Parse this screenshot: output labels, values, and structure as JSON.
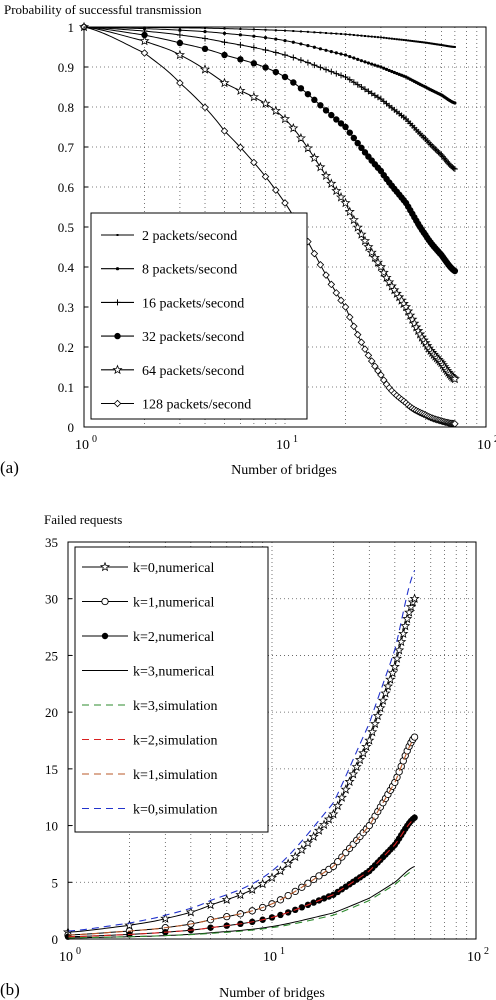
{
  "chart_data": [
    {
      "type": "line",
      "panel_label": "(a)",
      "title": "Probability of successful transmission",
      "xlabel": "Number of bridges",
      "ylabel": "",
      "xscale": "log",
      "xlim": [
        1,
        100
      ],
      "ylim": [
        0,
        1
      ],
      "x_ticks": [
        1,
        10,
        100
      ],
      "x_tick_labels": [
        "10",
        "10",
        "10"
      ],
      "x_tick_exponents": [
        "0",
        "1",
        "2"
      ],
      "y_ticks": [
        0,
        0.1,
        0.2,
        0.3,
        0.4,
        0.5,
        0.6,
        0.7,
        0.8,
        0.9,
        1
      ],
      "y_tick_labels": [
        "0",
        "0.1",
        "0.2",
        "0.3",
        "0.4",
        "0.5",
        "0.6",
        "0.7",
        "0.8",
        "0.9",
        "1"
      ],
      "grid": true,
      "legend_position": "lower-left",
      "x_range": [
        1,
        70
      ],
      "series": [
        {
          "name": "2 packets/second",
          "marker": "dot-small",
          "x": [
            1,
            2,
            3,
            5,
            10,
            20,
            30,
            40,
            50,
            60,
            70
          ],
          "values": [
            1.0,
            0.999,
            0.998,
            0.996,
            0.991,
            0.982,
            0.974,
            0.967,
            0.961,
            0.955,
            0.95
          ]
        },
        {
          "name": "8 packets/second",
          "marker": "dot",
          "x": [
            1,
            2,
            3,
            5,
            10,
            20,
            30,
            40,
            50,
            60,
            70
          ],
          "values": [
            1.0,
            0.996,
            0.992,
            0.984,
            0.966,
            0.93,
            0.9,
            0.875,
            0.85,
            0.83,
            0.81
          ]
        },
        {
          "name": "16 packets/second",
          "marker": "plus",
          "x": [
            1,
            2,
            3,
            5,
            10,
            20,
            30,
            40,
            50,
            60,
            70
          ],
          "values": [
            1.0,
            0.99,
            0.98,
            0.962,
            0.93,
            0.875,
            0.82,
            0.77,
            0.72,
            0.68,
            0.645
          ]
        },
        {
          "name": "32 packets/second",
          "marker": "filled-circle",
          "x": [
            1,
            2,
            3,
            5,
            10,
            20,
            30,
            40,
            50,
            60,
            70
          ],
          "values": [
            1.0,
            0.98,
            0.96,
            0.93,
            0.875,
            0.75,
            0.64,
            0.56,
            0.48,
            0.43,
            0.39
          ]
        },
        {
          "name": "64 packets/second",
          "marker": "star",
          "x": [
            1,
            2,
            3,
            5,
            10,
            20,
            30,
            40,
            50,
            60,
            70
          ],
          "values": [
            1.0,
            0.965,
            0.93,
            0.86,
            0.77,
            0.56,
            0.4,
            0.3,
            0.21,
            0.16,
            0.12
          ]
        },
        {
          "name": "128 packets/second",
          "marker": "diamond",
          "x": [
            1,
            2,
            3,
            5,
            10,
            20,
            30,
            40,
            50,
            60,
            70
          ],
          "values": [
            1.0,
            0.935,
            0.86,
            0.74,
            0.56,
            0.3,
            0.13,
            0.06,
            0.03,
            0.015,
            0.008
          ]
        }
      ]
    },
    {
      "type": "line",
      "panel_label": "(b)",
      "title": "Failed requests",
      "xlabel": "Number of bridges",
      "ylabel": "",
      "xscale": "log",
      "xlim": [
        1,
        100
      ],
      "ylim": [
        0,
        35
      ],
      "x_ticks": [
        1,
        10,
        100
      ],
      "x_tick_labels": [
        "10",
        "10",
        "10"
      ],
      "x_tick_exponents": [
        "0",
        "1",
        "2"
      ],
      "y_ticks": [
        0,
        5,
        10,
        15,
        20,
        25,
        30,
        35
      ],
      "y_tick_labels": [
        "0",
        "5",
        "10",
        "15",
        "20",
        "25",
        "30",
        "35"
      ],
      "grid": true,
      "legend_position": "top-left",
      "x_range": [
        1,
        50
      ],
      "series": [
        {
          "name": "k=0,numerical",
          "style": "solid",
          "color": "#000000",
          "marker": "star",
          "x": [
            1,
            2,
            3,
            5,
            10,
            20,
            30,
            40,
            50
          ],
          "values": [
            0.6,
            1.2,
            1.8,
            3.0,
            5.4,
            11.0,
            17.5,
            24.0,
            30.0
          ]
        },
        {
          "name": "k=1,numerical",
          "style": "solid",
          "color": "#000000",
          "marker": "open-circle",
          "x": [
            1,
            2,
            3,
            5,
            10,
            20,
            30,
            40,
            50
          ],
          "values": [
            0.35,
            0.7,
            1.0,
            1.7,
            3.1,
            6.4,
            10.0,
            13.8,
            17.8
          ]
        },
        {
          "name": "k=2,numerical",
          "style": "solid",
          "color": "#000000",
          "marker": "filled-circle",
          "x": [
            1,
            2,
            3,
            5,
            10,
            20,
            30,
            40,
            50
          ],
          "values": [
            0.2,
            0.4,
            0.6,
            1.0,
            1.9,
            3.9,
            6.0,
            8.3,
            10.7
          ]
        },
        {
          "name": "k=3,numerical",
          "style": "solid",
          "color": "#000000",
          "marker": "none",
          "x": [
            1,
            2,
            3,
            5,
            10,
            20,
            30,
            40,
            50
          ],
          "values": [
            0.1,
            0.2,
            0.3,
            0.55,
            1.1,
            2.3,
            3.6,
            5.0,
            6.4
          ]
        },
        {
          "name": "k=3,simulation",
          "style": "dashed",
          "color": "#2e8b2e",
          "marker": "none",
          "x": [
            1,
            2,
            3,
            5,
            10,
            20,
            30,
            40,
            50
          ],
          "values": [
            0.1,
            0.2,
            0.3,
            0.5,
            1.0,
            2.1,
            3.4,
            4.8,
            6.1
          ]
        },
        {
          "name": "k=2,simulation",
          "style": "dashed",
          "color": "#d82020",
          "marker": "none",
          "x": [
            1,
            2,
            3,
            5,
            10,
            20,
            30,
            40,
            50
          ],
          "values": [
            0.2,
            0.4,
            0.6,
            1.0,
            1.9,
            3.9,
            6.0,
            8.3,
            10.6
          ]
        },
        {
          "name": "k=1,simulation",
          "style": "dashed",
          "color": "#b85a2a",
          "marker": "none",
          "x": [
            1,
            2,
            3,
            5,
            10,
            20,
            30,
            40,
            50
          ],
          "values": [
            0.35,
            0.7,
            1.0,
            1.7,
            3.1,
            6.4,
            10.0,
            13.8,
            17.7
          ]
        },
        {
          "name": "k=0,simulation",
          "style": "dashed",
          "color": "#2233cc",
          "marker": "none",
          "x": [
            1,
            2,
            3,
            5,
            10,
            20,
            30,
            40,
            50
          ],
          "values": [
            0.7,
            1.4,
            2.1,
            3.4,
            6.0,
            12.0,
            19.0,
            25.5,
            32.5
          ]
        }
      ]
    }
  ]
}
